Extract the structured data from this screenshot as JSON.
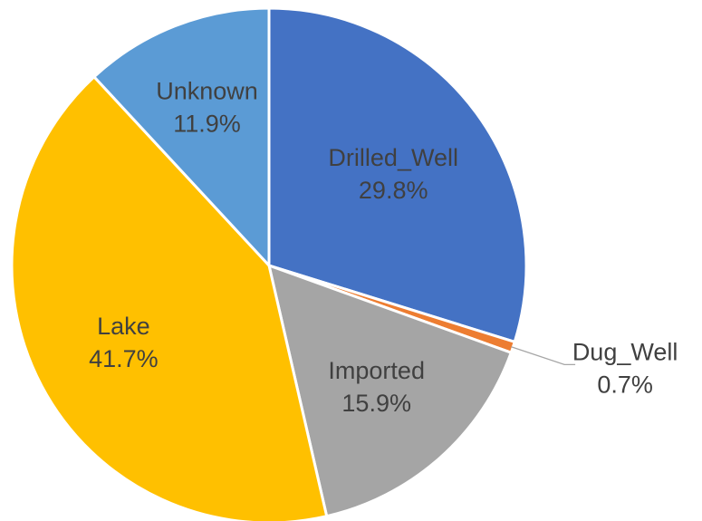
{
  "chart_data": {
    "type": "pie",
    "title": "",
    "slices": [
      {
        "label": "Drilled_Well",
        "value": 29.8,
        "value_label": "29.8%",
        "color": "#4472C4"
      },
      {
        "label": "Dug_Well",
        "value": 0.7,
        "value_label": "0.7%",
        "color": "#ED7D31"
      },
      {
        "label": "Imported",
        "value": 15.9,
        "value_label": "15.9%",
        "color": "#A5A5A5"
      },
      {
        "label": "Lake",
        "value": 41.7,
        "value_label": "41.7%",
        "color": "#FFC000"
      },
      {
        "label": "Unknown",
        "value": 11.9,
        "value_label": "11.9%",
        "color": "#5B9BD5"
      }
    ],
    "start_angle": "12 o'clock",
    "direction": "clockwise",
    "legend": "none",
    "data_labels": "category name and percentage"
  }
}
